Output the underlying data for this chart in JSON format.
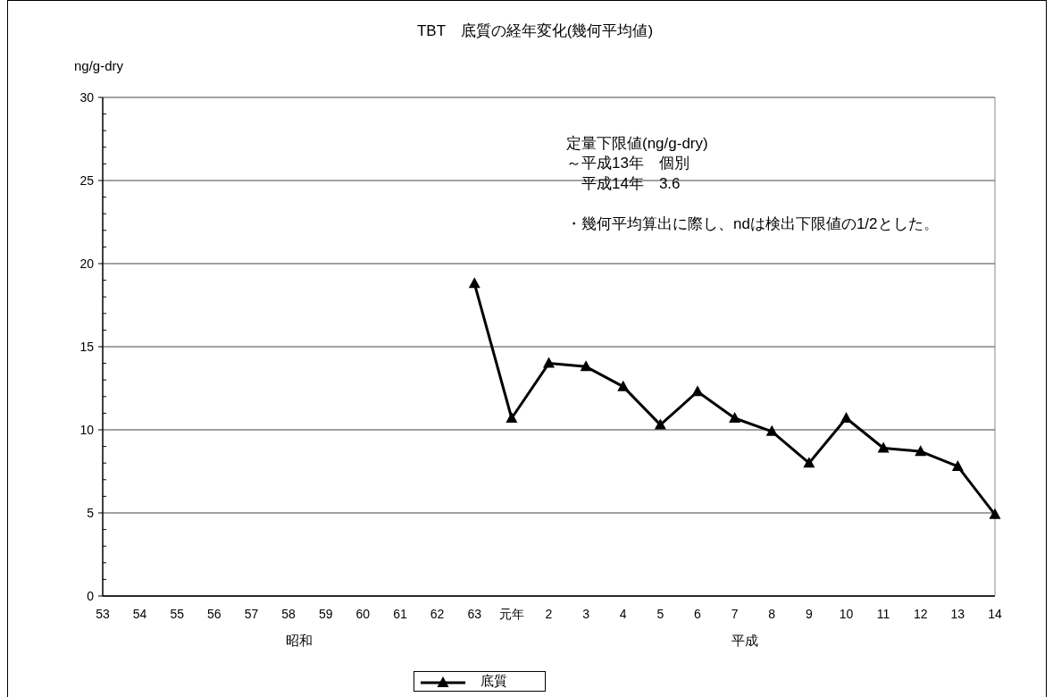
{
  "chart_data": {
    "type": "line",
    "title": "TBT　底質の経年変化(幾何平均値)",
    "ylabel": "ng/g-dry",
    "categories": [
      "53",
      "54",
      "55",
      "56",
      "57",
      "58",
      "59",
      "60",
      "61",
      "62",
      "63",
      "元年",
      "2",
      "3",
      "4",
      "5",
      "6",
      "7",
      "8",
      "9",
      "10",
      "11",
      "12",
      "13",
      "14"
    ],
    "series": [
      {
        "name": "底質",
        "color": "#000000",
        "values": [
          null,
          null,
          null,
          null,
          null,
          null,
          null,
          null,
          null,
          null,
          18.8,
          10.7,
          14.0,
          13.8,
          12.6,
          10.3,
          12.3,
          10.7,
          9.9,
          8.0,
          10.7,
          8.9,
          8.7,
          7.8,
          4.9
        ]
      }
    ],
    "ylim": [
      0,
      30
    ],
    "yticks": [
      0,
      {
        "value": 1,
        "label": null
      },
      {
        "value": 2,
        "label": null
      },
      {
        "value": 3,
        "label": null
      },
      {
        "value": 4,
        "label": null
      },
      5,
      {
        "value": 6,
        "label": null
      },
      {
        "value": 7,
        "label": null
      },
      {
        "value": 8,
        "label": null
      },
      {
        "value": 9,
        "label": null
      },
      10,
      {
        "value": 11,
        "label": null
      },
      {
        "value": 12,
        "label": null
      },
      {
        "value": 13,
        "label": null
      },
      {
        "value": 14,
        "label": null
      },
      15,
      {
        "value": 16,
        "label": null
      },
      {
        "value": 17,
        "label": null
      },
      {
        "value": 18,
        "label": null
      },
      {
        "value": 19,
        "label": null
      },
      20,
      {
        "value": 21,
        "label": null
      },
      {
        "value": 22,
        "label": null
      },
      {
        "value": 23,
        "label": null
      },
      {
        "value": 24,
        "label": null
      },
      25,
      {
        "value": 26,
        "label": null
      },
      {
        "value": 27,
        "label": null
      },
      {
        "value": 28,
        "label": null
      },
      {
        "value": 29,
        "label": null
      },
      30
    ],
    "grid": "y",
    "legend": "bottom",
    "marker": "triangle",
    "line_style": "solid",
    "annotations": [
      "昭和",
      "平成",
      "定量下限値(ng/g-dry)",
      "～平成13年　個別",
      "　平成14年　3.6",
      "・幾何平均算出に際し、ndは検出下限値の1/2とした。"
    ]
  }
}
